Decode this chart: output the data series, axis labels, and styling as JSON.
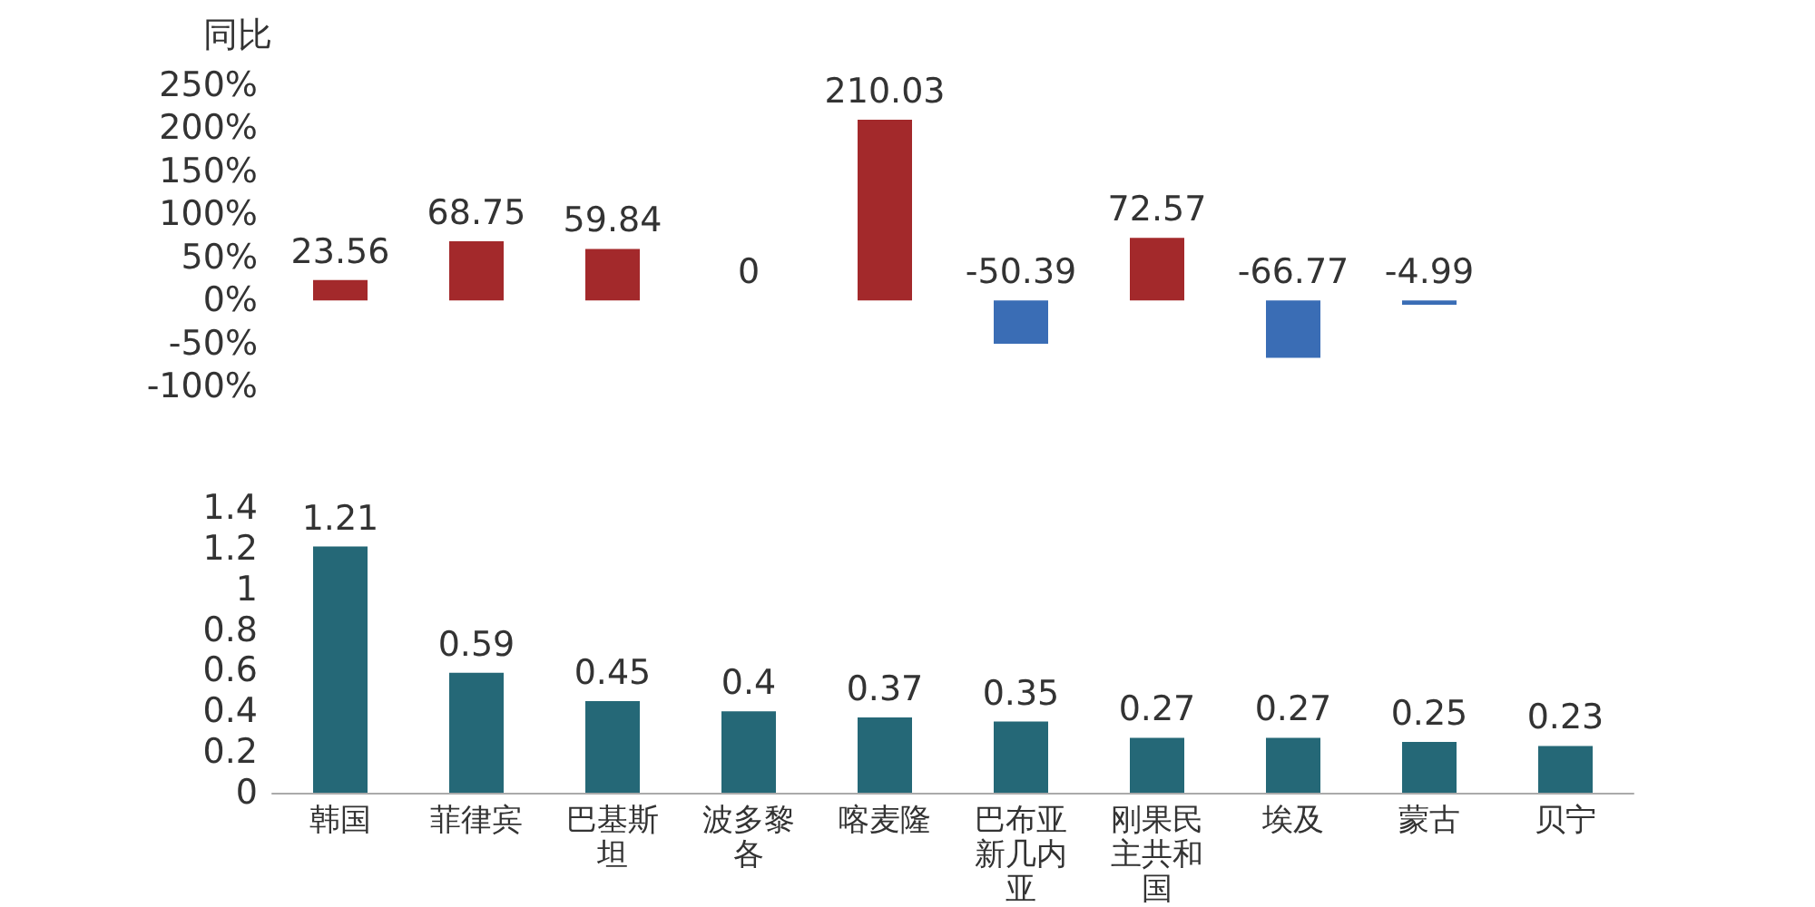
{
  "chart_data": [
    {
      "type": "bar",
      "ylabel": "同比",
      "categories": [
        "韩国",
        "菲律宾",
        "巴基斯坦",
        "波多黎各",
        "喀麦隆",
        "巴布亚新几内亚",
        "刚果民主共和国",
        "埃及",
        "蒙古",
        "贝宁"
      ],
      "values": [
        23.56,
        68.75,
        59.84,
        0,
        210.03,
        -50.39,
        72.57,
        -66.77,
        -4.99,
        null
      ],
      "colors": [
        "#a3292b",
        "#a3292b",
        "#a3292b",
        "#a3292b",
        "#a3292b",
        "#3a6db5",
        "#a3292b",
        "#3a6db5",
        "#3a6db5",
        null
      ],
      "ylim": [
        -100,
        250
      ],
      "yticks": [
        {
          "value": -100,
          "label": "-100%"
        },
        {
          "value": -50,
          "label": "-50%"
        },
        {
          "value": 0,
          "label": "0%"
        },
        {
          "value": 50,
          "label": "50%"
        },
        {
          "value": 100,
          "label": "100%"
        },
        {
          "value": 150,
          "label": "150%"
        },
        {
          "value": 200,
          "label": "200%"
        },
        {
          "value": 250,
          "label": "250%"
        }
      ],
      "tick_labels": "y",
      "data_labels": true,
      "grid": false
    },
    {
      "type": "bar",
      "categories": [
        "韩国",
        "菲律宾",
        "巴基斯坦",
        "波多黎各",
        "喀麦隆",
        "巴布亚新几内亚",
        "刚果民主共和国",
        "埃及",
        "蒙古",
        "贝宁"
      ],
      "values": [
        1.21,
        0.59,
        0.45,
        0.4,
        0.37,
        0.35,
        0.27,
        0.27,
        0.25,
        0.23
      ],
      "color": "#256877",
      "ylim": [
        0,
        1.4
      ],
      "yticks": [
        0,
        0.2,
        0.4,
        0.6,
        0.8,
        1,
        1.2,
        1.4
      ],
      "data_labels": true,
      "grid": false
    }
  ]
}
